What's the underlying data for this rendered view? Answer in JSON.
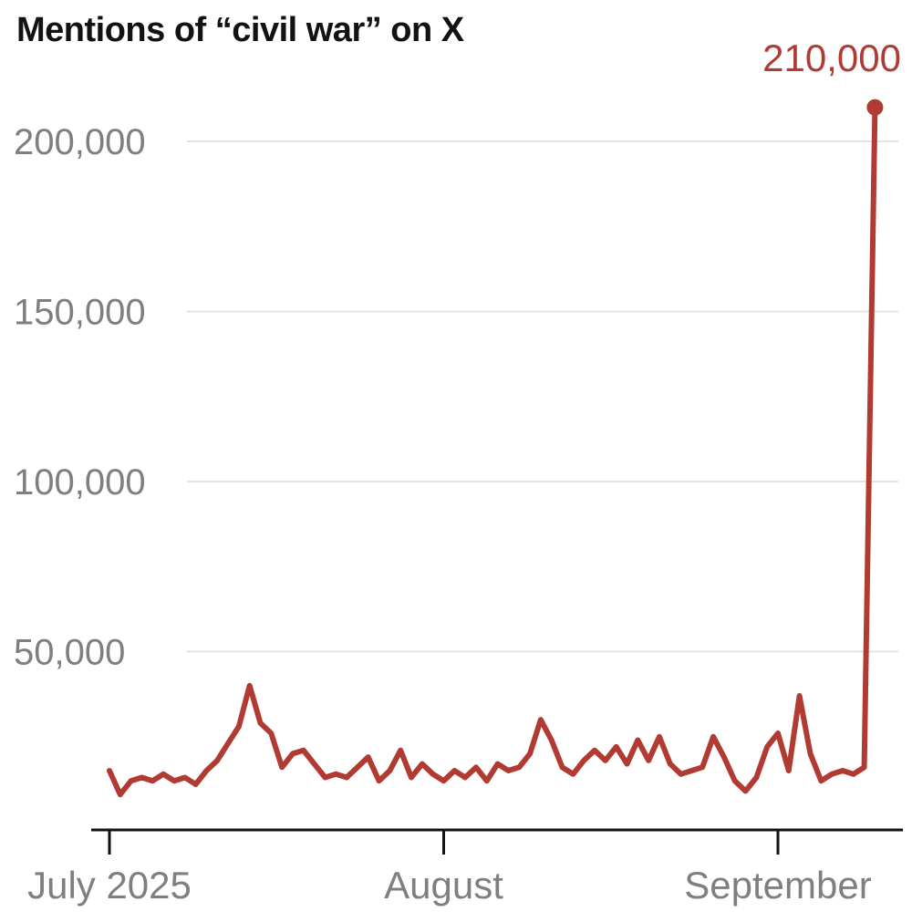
{
  "chart_data": {
    "type": "line",
    "title": "Mentions of “civil war” on X",
    "annotation": {
      "label": "210,000",
      "value": 210000
    },
    "x_ticks": [
      {
        "label": "July 2025",
        "day_index": 0
      },
      {
        "label": "August",
        "day_index": 31
      },
      {
        "label": "September",
        "day_index": 62
      }
    ],
    "y_ticks": [
      {
        "value": 50000,
        "label": "50,000"
      },
      {
        "value": 100000,
        "label": "100,000"
      },
      {
        "value": 150000,
        "label": "150,000"
      },
      {
        "value": 200000,
        "label": "200,000"
      }
    ],
    "ylim": [
      0,
      215000
    ],
    "grid": true,
    "legend": "none",
    "values": [
      15000,
      8000,
      12000,
      13000,
      12000,
      14000,
      12000,
      13000,
      11000,
      15000,
      18000,
      23000,
      28000,
      40000,
      29000,
      26000,
      16000,
      20000,
      21000,
      17000,
      13000,
      14000,
      13000,
      16000,
      19000,
      12000,
      15000,
      21000,
      13000,
      17000,
      14000,
      12000,
      15000,
      13000,
      16000,
      12000,
      17000,
      15000,
      16000,
      20000,
      30000,
      24000,
      16000,
      14000,
      18000,
      21000,
      18000,
      22000,
      17000,
      24000,
      18000,
      25000,
      17000,
      14000,
      15000,
      16000,
      25000,
      19000,
      12000,
      9000,
      13000,
      22000,
      26000,
      15000,
      37000,
      20000,
      12000,
      14000,
      15000,
      14000,
      16000,
      210000
    ],
    "colors": {
      "line": "#b13a32",
      "annotation": "#b13a32",
      "grid": "#e3e3e3",
      "axis": "#121212",
      "tick_label": "#7f7f7f",
      "title": "#121212"
    }
  }
}
